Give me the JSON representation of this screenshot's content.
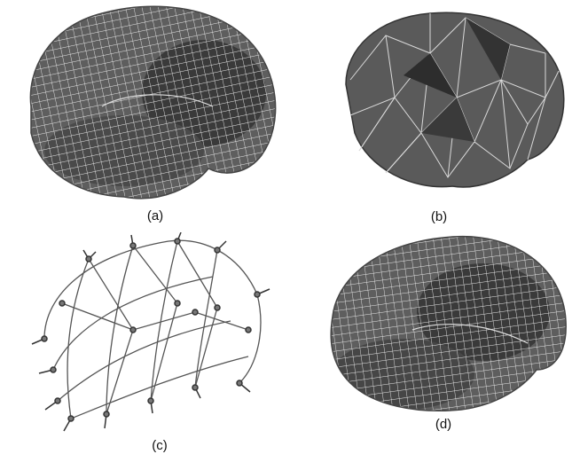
{
  "figure": {
    "panels": [
      {
        "id": "a",
        "label": "(a)",
        "content": "hexahedral-brain-mesh"
      },
      {
        "id": "b",
        "label": "(b)",
        "content": "triangular-brain-surface-mesh"
      },
      {
        "id": "c",
        "label": "(c)",
        "content": "electrode-head-wireframe"
      },
      {
        "id": "d",
        "label": "(d)",
        "content": "hexahedral-brain-mesh-rotated"
      }
    ],
    "colors": {
      "mesh_fill": "#5a5a5a",
      "mesh_dark": "#2f2f2f",
      "mesh_line": "#e6e6e6",
      "wire": "#555555"
    }
  }
}
